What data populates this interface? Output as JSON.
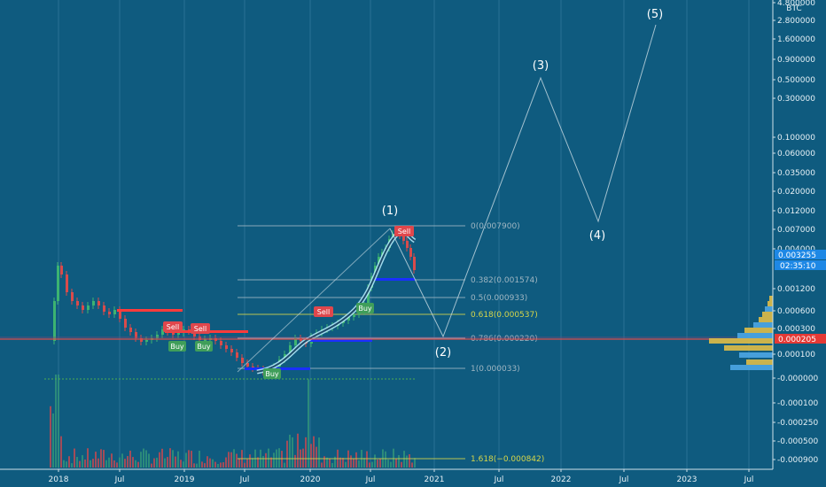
{
  "chart_data": {
    "type": "candlestick",
    "title": "",
    "xlabel": "",
    "ylabel": "",
    "currency_label": "BTC",
    "y_ticks": [
      "4.800000",
      "2.800000",
      "1.600000",
      "0.900000",
      "0.500000",
      "0.300000",
      "0.100000",
      "0.060000",
      "0.035000",
      "0.020000",
      "0.012000",
      "0.007000",
      "0.004000",
      "0.001200",
      "0.000600",
      "0.000300",
      "0.000100",
      "-0.000000",
      "-0.000100",
      "-0.000250",
      "-0.000500",
      "-0.000900"
    ],
    "x_ticks": [
      "2018",
      "Jul",
      "2019",
      "Jul",
      "2020",
      "Jul",
      "2021",
      "Jul",
      "2022",
      "Jul",
      "2023",
      "Jul"
    ],
    "last_price": "0.003255",
    "countdown": "02:35:10",
    "reference_price": "0.000205",
    "colors": {
      "background": "#0f5b7f",
      "up": "#3cb371",
      "down": "#d94b4b",
      "fib": "#9fb6c2",
      "fib_gold": "#d6d64a",
      "price_badge": "#1e88e5",
      "ref_badge": "#e53935",
      "blue_zone": "#1a2fff"
    },
    "fib_levels": [
      {
        "label": "0(0.007900)",
        "value": 0.0079
      },
      {
        "label": "0.382(0.001574)",
        "value": 0.001574
      },
      {
        "label": "0.5(0.000933)",
        "value": 0.000933
      },
      {
        "label": "0.618(0.000537)",
        "value": 0.000537
      },
      {
        "label": "0.786(0.000220)",
        "value": 0.00022
      },
      {
        "label": "1(0.000033)",
        "value": 3.3e-05
      },
      {
        "label": "1.618(−0.000842)",
        "value": -0.000842
      }
    ],
    "waves": [
      {
        "label": "(1)",
        "date": "2020-09",
        "value": 0.0079
      },
      {
        "label": "(2)",
        "date": "2020-12",
        "value": 0.00022
      },
      {
        "label": "(3)",
        "date": "2021-11",
        "value": 0.5
      },
      {
        "label": "(4)",
        "date": "2022-05",
        "value": 0.01
      },
      {
        "label": "(5)",
        "date": "2022-11",
        "value": 2.8
      }
    ],
    "signals": [
      {
        "type": "Sell",
        "date": "2019-01"
      },
      {
        "type": "Sell",
        "date": "2019-02"
      },
      {
        "type": "Buy",
        "date": "2018-12"
      },
      {
        "type": "Buy",
        "date": "2019-02"
      },
      {
        "type": "Buy",
        "date": "2019-10"
      },
      {
        "type": "Sell",
        "date": "2020-02"
      },
      {
        "type": "Buy",
        "date": "2020-06"
      },
      {
        "type": "Sell",
        "date": "2020-09"
      }
    ]
  }
}
